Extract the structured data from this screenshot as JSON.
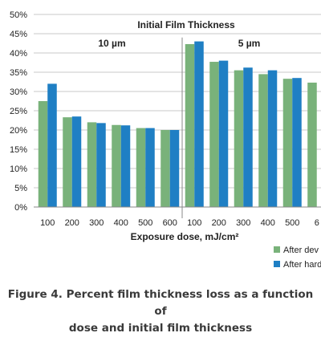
{
  "chart_data": {
    "type": "bar",
    "title": "Initial Film Thickness",
    "xlabel": "Exposure dose, mJ/cm²",
    "ylabel": "",
    "ylim": [
      0,
      50
    ],
    "ytick_labels": [
      "0%",
      "5%",
      "10%",
      "15%",
      "20%",
      "25%",
      "30%",
      "35%",
      "40%",
      "45%",
      "50%"
    ],
    "groups": [
      {
        "label": "10 µm",
        "count": 6
      },
      {
        "label": "5 µm",
        "count": 6
      }
    ],
    "categories": [
      "100",
      "200",
      "300",
      "400",
      "500",
      "600",
      "100",
      "200",
      "300",
      "400",
      "500",
      "6"
    ],
    "series": [
      {
        "name": "After dev",
        "color": "#79b27a",
        "values": [
          27.5,
          23.3,
          22.0,
          21.3,
          20.5,
          20.0,
          42.3,
          37.7,
          35.5,
          34.5,
          33.3,
          32.3
        ]
      },
      {
        "name": "After hard",
        "color": "#1f7fc4",
        "values": [
          32.0,
          23.5,
          21.8,
          21.2,
          20.5,
          20.0,
          43.0,
          38.0,
          36.2,
          35.5,
          33.5,
          null
        ]
      }
    ],
    "grid": true,
    "legend": "bottom-right"
  },
  "caption": {
    "line1": "Figure 4. Percent film thickness loss as a function of",
    "line2": "dose and initial film thickness"
  }
}
